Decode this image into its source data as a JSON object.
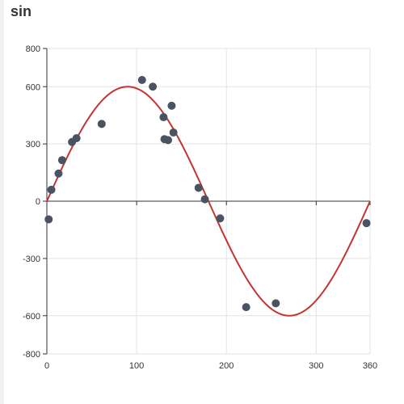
{
  "chart_data": {
    "type": "scatter",
    "title": "sin",
    "xlabel": "",
    "ylabel": "",
    "xlim": [
      0,
      360
    ],
    "ylim": [
      -800,
      800
    ],
    "grid": true,
    "x_ticks": [
      0,
      100,
      200,
      300,
      360
    ],
    "y_ticks": [
      -800,
      -600,
      -300,
      0,
      300,
      600,
      800
    ],
    "x_tick_labels": [
      "0",
      "100",
      "200",
      "300",
      "360"
    ],
    "y_tick_labels": [
      "-800",
      "-600",
      "-300",
      "0",
      "300",
      "600",
      "800"
    ],
    "curve": {
      "function": "600*sin(x deg)",
      "amplitude": 600,
      "color": "#c23531"
    },
    "points_color": "#4a5361",
    "series": [
      {
        "type": "scatter",
        "x": [
          2,
          5,
          13,
          17,
          28,
          33,
          61,
          106,
          118,
          130,
          131,
          135,
          139,
          141,
          169,
          176,
          193,
          222,
          255,
          356
        ],
        "y": [
          -95,
          60,
          145,
          215,
          310,
          330,
          405,
          635,
          600,
          440,
          325,
          320,
          500,
          360,
          70,
          10,
          -90,
          -555,
          -535,
          -115
        ]
      }
    ]
  }
}
